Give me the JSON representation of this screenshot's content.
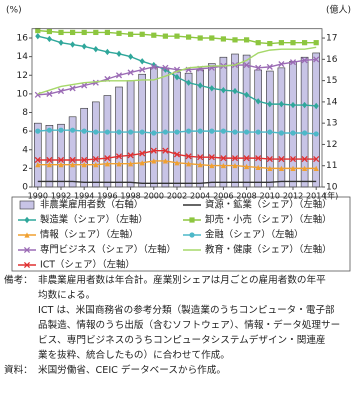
{
  "chart_data": {
    "type": "combo",
    "y_unit": "(%)",
    "y2_unit": "(億人)",
    "x_unit": "(年)",
    "x": [
      1990,
      1991,
      1992,
      1993,
      1994,
      1995,
      1996,
      1997,
      1998,
      1999,
      2000,
      2001,
      2002,
      2003,
      2004,
      2005,
      2006,
      2007,
      2008,
      2009,
      2010,
      2011,
      2012,
      2013,
      2014
    ],
    "xlim": [
      1989.5,
      2014.5
    ],
    "xticks": [
      1990,
      1992,
      1994,
      1996,
      1998,
      2000,
      2002,
      2004,
      2006,
      2008,
      2010,
      2012,
      2014
    ],
    "ylim": [
      0,
      17
    ],
    "yticks": [
      0,
      2,
      4,
      6,
      8,
      10,
      12,
      14,
      16
    ],
    "y2lim": [
      10,
      17.44
    ],
    "y2ticks": [
      10,
      11,
      12,
      13,
      14,
      15,
      16,
      17
    ],
    "series": [
      {
        "name": "非農業雇用者数（右軸）",
        "type": "bar",
        "axis": "y2",
        "color": "#c8c4e6",
        "values": [
          13.0,
          12.9,
          12.95,
          13.3,
          13.7,
          14.0,
          14.3,
          14.7,
          15.0,
          15.3,
          15.6,
          15.6,
          15.4,
          15.35,
          15.5,
          15.8,
          16.1,
          16.25,
          16.2,
          15.5,
          15.45,
          15.6,
          15.9,
          16.1,
          16.3
        ]
      },
      {
        "name": "資源・鉱業（シェア）（左軸）",
        "type": "line",
        "marker": "none",
        "color": "#333333",
        "values": [
          0.6,
          0.6,
          0.6,
          0.6,
          0.5,
          0.5,
          0.5,
          0.5,
          0.5,
          0.4,
          0.4,
          0.4,
          0.4,
          0.4,
          0.4,
          0.5,
          0.5,
          0.5,
          0.5,
          0.5,
          0.5,
          0.6,
          0.6,
          0.6,
          0.6
        ]
      },
      {
        "name": "製造業（シェア）（左軸）",
        "type": "line",
        "marker": "diamond",
        "color": "#2fa79b",
        "values": [
          16.2,
          15.9,
          15.5,
          15.3,
          15.1,
          14.8,
          14.5,
          14.3,
          14.0,
          13.5,
          13.1,
          12.6,
          11.8,
          11.2,
          10.9,
          10.6,
          10.4,
          10.3,
          9.9,
          9.2,
          8.9,
          8.9,
          8.8,
          8.8,
          8.7
        ]
      },
      {
        "name": "卸売・小売（シェア）（左軸）",
        "type": "line",
        "marker": "square",
        "color": "#8dc63f",
        "values": [
          16.8,
          16.7,
          16.6,
          16.6,
          16.6,
          16.6,
          16.6,
          16.5,
          16.4,
          16.4,
          16.3,
          16.2,
          16.2,
          16.1,
          16.0,
          16.0,
          15.9,
          15.8,
          15.8,
          15.5,
          15.4,
          15.5,
          15.5,
          15.5,
          15.5
        ]
      },
      {
        "name": "情報（シェア）（左軸）",
        "type": "line",
        "marker": "triangle",
        "color": "#f0a030",
        "values": [
          2.4,
          2.4,
          2.4,
          2.4,
          2.4,
          2.4,
          2.5,
          2.5,
          2.5,
          2.6,
          2.8,
          2.8,
          2.6,
          2.5,
          2.4,
          2.3,
          2.3,
          2.3,
          2.2,
          2.1,
          2.0,
          2.0,
          2.0,
          2.0,
          2.0
        ]
      },
      {
        "name": "金融（シェア）（左軸）",
        "type": "line",
        "marker": "circle",
        "color": "#4db8c8",
        "values": [
          6.0,
          6.1,
          6.1,
          6.1,
          6.0,
          5.9,
          5.9,
          5.9,
          5.9,
          5.9,
          5.8,
          5.9,
          5.9,
          6.0,
          6.0,
          6.0,
          6.0,
          5.9,
          5.9,
          5.9,
          5.9,
          5.8,
          5.8,
          5.8,
          5.7
        ]
      },
      {
        "name": "専門ビジネス（シェア）（左軸）",
        "type": "line",
        "marker": "x",
        "color": "#9b6bb5",
        "values": [
          9.9,
          10.0,
          10.3,
          10.6,
          10.9,
          11.2,
          11.6,
          12.0,
          12.3,
          12.6,
          12.9,
          12.8,
          12.6,
          12.6,
          12.7,
          12.8,
          13.0,
          13.1,
          13.1,
          12.8,
          12.9,
          13.2,
          13.4,
          13.6,
          13.7
        ]
      },
      {
        "name": "教育・健康（シェア）（左軸）",
        "type": "line",
        "marker": "none",
        "color": "#a6d86a",
        "values": [
          10.0,
          10.4,
          10.8,
          11.0,
          11.2,
          11.3,
          11.4,
          11.4,
          11.4,
          11.5,
          11.5,
          11.9,
          12.4,
          12.8,
          12.9,
          13.0,
          13.0,
          13.1,
          13.6,
          14.4,
          14.7,
          14.8,
          14.8,
          14.8,
          15.0
        ]
      },
      {
        "name": "ICT（シェア）（左軸）",
        "type": "line",
        "marker": "x",
        "color": "#e03030",
        "values": [
          2.9,
          2.9,
          2.9,
          2.9,
          2.9,
          3.0,
          3.1,
          3.3,
          3.4,
          3.6,
          3.9,
          3.9,
          3.5,
          3.3,
          3.2,
          3.2,
          3.1,
          3.1,
          3.1,
          3.1,
          3.0,
          3.0,
          3.0,
          3.0,
          3.0
        ]
      }
    ],
    "notes": [
      {
        "label": "備考：",
        "lines": [
          "非農業雇用者数は年合計。産業別シェアは月ごとの雇用者数の年平",
          "均数による。",
          "ICT は、米国商務省の参考分類（製造業のうちコンピュータ・電子部",
          "品製造、情報のうち出版（含むソフトウェア）、情報・データ処理サー",
          "ビス、専門ビジネスのうちコンピュータシステムデザイン・関連産",
          "業を抜粋、統合したもの）に合わせて作成。"
        ]
      },
      {
        "label": "資料：",
        "lines": [
          "米国労働省、CEIC データベースから作成。"
        ]
      }
    ]
  }
}
